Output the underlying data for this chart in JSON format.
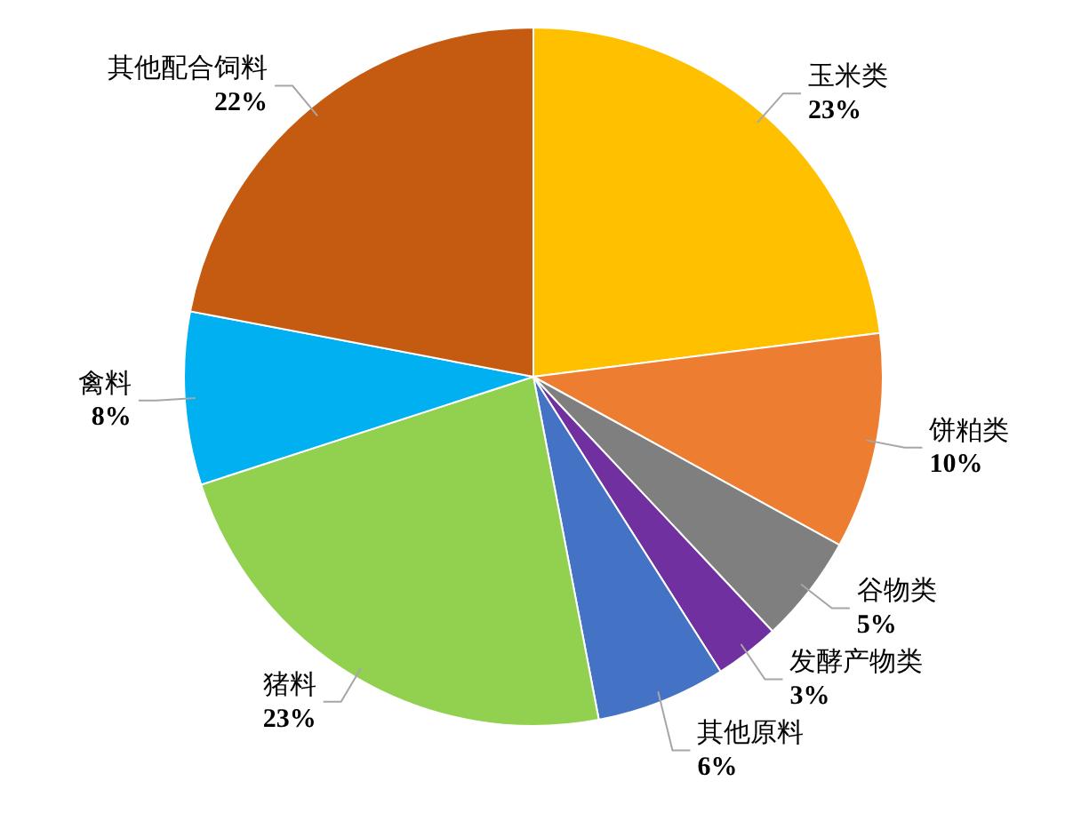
{
  "chart_data": {
    "type": "pie",
    "categories": [
      "玉米类",
      "饼粕类",
      "谷物类",
      "发酵产物类",
      "其他原料",
      "猪料",
      "禽料",
      "其他配合饲料"
    ],
    "values": [
      23,
      10,
      5,
      3,
      6,
      23,
      8,
      22
    ],
    "colors": [
      "#ffc000",
      "#ed7d31",
      "#7f7f7f",
      "#7030a0",
      "#4472c4",
      "#92d050",
      "#00b0f0",
      "#c55a11"
    ],
    "value_labels": [
      "23%",
      "10%",
      "5%",
      "3%",
      "6%",
      "23%",
      "8%",
      "22%"
    ],
    "legend": false
  }
}
